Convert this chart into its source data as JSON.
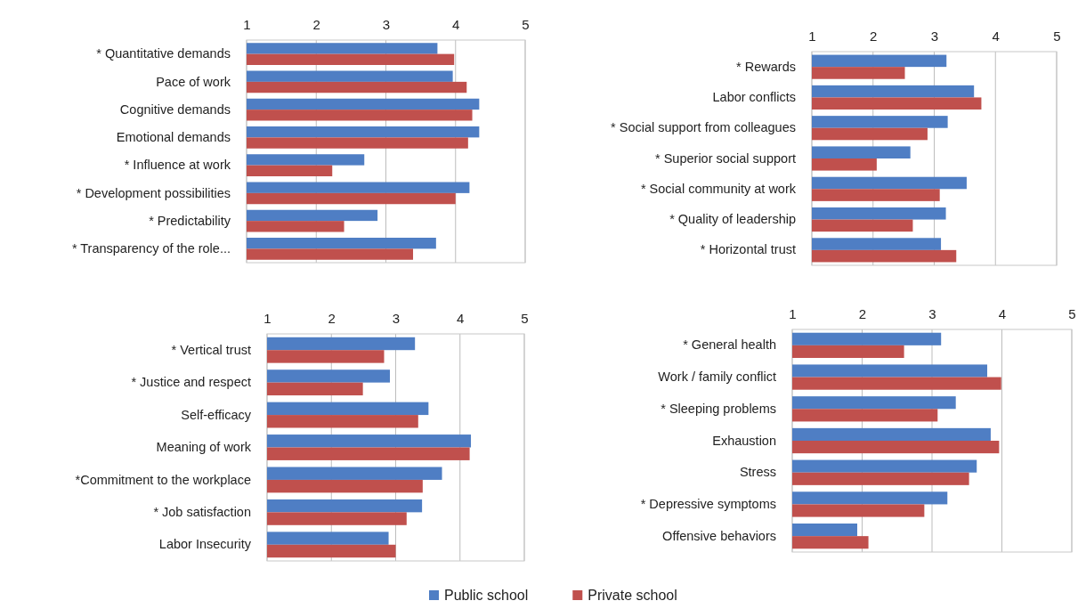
{
  "chart_data": [
    {
      "type": "bar",
      "orientation": "horizontal",
      "categories": [
        "* Quantitative demands",
        "Pace of work",
        "Cognitive demands",
        "Emotional demands",
        "* Influence at work",
        "* Development possibilities",
        "* Predictability",
        "* Transparency of the role..."
      ],
      "series": [
        {
          "name": "Public school",
          "color": "#4f7ec4",
          "values": [
            3.74,
            3.96,
            4.34,
            4.34,
            2.69,
            4.2,
            2.88,
            3.72
          ]
        },
        {
          "name": "Private school",
          "color": "#c0504d",
          "values": [
            3.98,
            4.16,
            4.24,
            4.18,
            2.23,
            4.0,
            2.4,
            3.39
          ]
        }
      ],
      "xlim": [
        1,
        5
      ],
      "xticks": [
        1,
        2,
        3,
        4,
        5
      ],
      "grid": "x",
      "legend": "bottom"
    },
    {
      "type": "bar",
      "orientation": "horizontal",
      "categories": [
        "* Rewards",
        "Labor conflicts",
        "* Social support from colleagues",
        "* Superior social support",
        "* Social community at work",
        "* Quality of leadership",
        "* Horizontal trust"
      ],
      "series": [
        {
          "color": "#4f7ec4",
          "values": [
            3.2,
            3.65,
            3.22,
            2.61,
            3.53,
            3.19,
            3.11
          ]
        },
        {
          "color": "#c0504d",
          "values": [
            2.52,
            3.77,
            2.89,
            2.06,
            3.09,
            2.65,
            3.36
          ]
        }
      ],
      "xlim": [
        1,
        5
      ],
      "xticks": [
        1,
        2,
        3,
        4,
        5
      ],
      "grid": "x"
    },
    {
      "type": "bar",
      "orientation": "horizontal",
      "categories": [
        "* Vertical trust",
        "* Justice and respect",
        "Self-efficacy",
        "Meaning of work",
        "*Commitment to the workplace",
        "* Job satisfaction",
        "Labor Insecurity"
      ],
      "series": [
        {
          "color": "#4f7ec4",
          "values": [
            3.3,
            2.91,
            3.51,
            4.17,
            3.72,
            3.41,
            2.89
          ]
        },
        {
          "color": "#c0504d",
          "values": [
            2.82,
            2.49,
            3.35,
            4.15,
            3.42,
            3.17,
            3.0
          ]
        }
      ],
      "xlim": [
        1,
        5
      ],
      "xticks": [
        1,
        2,
        3,
        4,
        5
      ],
      "grid": "x"
    },
    {
      "type": "bar",
      "orientation": "horizontal",
      "categories": [
        "* General health",
        "Work / family conflict",
        "* Sleeping problems",
        "Exhaustion",
        "Stress",
        "* Depressive symptoms",
        "Offensive behaviors"
      ],
      "series": [
        {
          "color": "#4f7ec4",
          "values": [
            3.13,
            3.79,
            3.34,
            3.84,
            3.64,
            3.22,
            1.93
          ]
        },
        {
          "color": "#c0504d",
          "values": [
            2.6,
            3.99,
            3.08,
            3.96,
            3.53,
            2.89,
            2.09
          ]
        }
      ],
      "xlim": [
        1,
        5
      ],
      "xticks": [
        1,
        2,
        3,
        4,
        5
      ],
      "grid": "x"
    }
  ]
}
